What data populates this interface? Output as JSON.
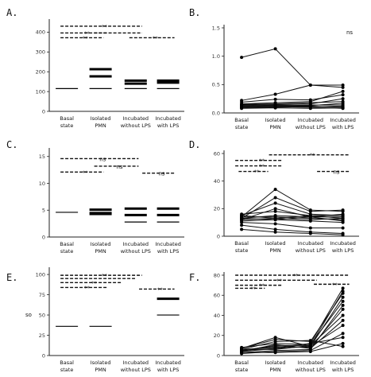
{
  "panels": [
    {
      "id": "A",
      "label": "A.",
      "type": "bar-range",
      "ylim": [
        0,
        450
      ],
      "yticks": [
        0,
        100,
        200,
        300,
        400
      ],
      "categories": [
        "Basal state",
        "Isolated PMN",
        "Incubated without LPS",
        "Incubated with LPS"
      ],
      "series": [
        {
          "values": [
            115,
            115,
            115,
            115
          ]
        },
        {
          "values": [
            null,
            177,
            140,
            145
          ]
        },
        {
          "values": [
            null,
            213,
            155,
            155
          ]
        }
      ],
      "sig_bars": [
        {
          "from": 0,
          "to": 2,
          "y": 430,
          "label": "**"
        },
        {
          "from": 0,
          "to": 1,
          "y": 396,
          "label": "**"
        },
        {
          "from": 1,
          "to": 2,
          "y": 396,
          "label": ""
        },
        {
          "from": 0,
          "to": 0.9,
          "y": 372,
          "label": "**"
        },
        {
          "from": 2,
          "to": 3,
          "y": 372,
          "label": "**"
        }
      ],
      "annotations": []
    },
    {
      "id": "B",
      "label": "B.",
      "type": "line",
      "ylim": [
        0,
        1.5
      ],
      "yticks": [
        0,
        0.5,
        1.0,
        1.5
      ],
      "ytick_labels": [
        "0.0",
        "0.5",
        "1.0",
        "1.5"
      ],
      "categories": [
        "Basal state",
        "Isolated PMN",
        "Incubated without LPS",
        "Incubated with LPS"
      ],
      "series": [
        {
          "values": [
            0.98,
            1.13,
            0.49,
            0.49
          ]
        },
        {
          "values": [
            0.22,
            0.33,
            0.49,
            0.45
          ]
        },
        {
          "values": [
            0.19,
            0.24,
            0.23,
            0.32
          ]
        },
        {
          "values": [
            0.16,
            0.18,
            0.2,
            0.38
          ]
        },
        {
          "values": [
            0.15,
            0.16,
            0.18,
            0.2
          ]
        },
        {
          "values": [
            0.14,
            0.15,
            0.16,
            0.25
          ]
        },
        {
          "values": [
            0.13,
            0.14,
            0.13,
            0.17
          ]
        },
        {
          "values": [
            0.12,
            0.13,
            0.14,
            0.14
          ]
        },
        {
          "values": [
            0.11,
            0.12,
            0.12,
            0.1
          ]
        },
        {
          "values": [
            0.1,
            0.11,
            0.1,
            0.08
          ]
        },
        {
          "values": [
            0.09,
            0.1,
            0.11,
            0.12
          ]
        },
        {
          "values": [
            0.08,
            0.09,
            0.08,
            0.09
          ]
        }
      ],
      "sig_bars": [],
      "annotations": [
        {
          "text": "ns"
        }
      ]
    },
    {
      "id": "C",
      "label": "C.",
      "type": "bar-range",
      "ylim": [
        0,
        16
      ],
      "yticks": [
        0,
        5,
        10,
        15
      ],
      "categories": [
        "Basal state",
        "Isolated PMN",
        "Incubated without LPS",
        "Incubated with LPS"
      ],
      "series": [
        {
          "values": [
            4.6,
            4.6,
            2.8,
            2.8
          ]
        },
        {
          "values": [
            null,
            4.3,
            4.1,
            4.1
          ]
        },
        {
          "values": [
            null,
            5.1,
            5.3,
            5.3
          ]
        }
      ],
      "sig_bars": [
        {
          "from": 0,
          "to": 1.9,
          "y": 14.6,
          "label": "ns"
        },
        {
          "from": 0,
          "to": 0.9,
          "y": 12.1,
          "label": "**"
        },
        {
          "from": 1,
          "to": 1.9,
          "y": 13.2,
          "label": "ns"
        },
        {
          "from": 2.4,
          "to": 3,
          "y": 11.9,
          "label": "ns"
        }
      ],
      "annotations": []
    },
    {
      "id": "D",
      "label": "D.",
      "type": "line",
      "ylim": [
        0,
        60
      ],
      "yticks": [
        0,
        20,
        40,
        60
      ],
      "categories": [
        "Basal state",
        "Isolated PMN",
        "Incubated without LPS",
        "Incubated with LPS"
      ],
      "series": [
        {
          "values": [
            14,
            34,
            19,
            18
          ]
        },
        {
          "values": [
            13,
            28,
            18,
            19
          ]
        },
        {
          "values": [
            15,
            24,
            16,
            15
          ]
        },
        {
          "values": [
            12,
            20,
            14,
            16
          ]
        },
        {
          "values": [
            16,
            18,
            15,
            13
          ]
        },
        {
          "values": [
            13,
            15,
            14,
            14
          ]
        },
        {
          "values": [
            14,
            14,
            13,
            12
          ]
        },
        {
          "values": [
            12,
            13,
            12,
            13
          ]
        },
        {
          "values": [
            11,
            12,
            14,
            11
          ]
        },
        {
          "values": [
            15,
            13,
            15,
            15
          ]
        },
        {
          "values": [
            10,
            9,
            6,
            6
          ]
        },
        {
          "values": [
            8,
            5,
            3,
            2
          ]
        },
        {
          "values": [
            5,
            3,
            2,
            1
          ]
        },
        {
          "values": [
            13,
            12,
            11,
            10
          ]
        }
      ],
      "sig_bars": [
        {
          "from": 1,
          "to": 3,
          "y": 59,
          "label": "**"
        },
        {
          "from": 0,
          "to": 1,
          "y": 55,
          "label": "**"
        },
        {
          "from": 0,
          "to": 1,
          "y": 51,
          "label": "**"
        },
        {
          "from": 0.1,
          "to": 0.6,
          "y": 47,
          "label": "**"
        },
        {
          "from": 2.4,
          "to": 3,
          "y": 47,
          "label": "ns"
        }
      ],
      "annotations": []
    },
    {
      "id": "E",
      "label": "E.",
      "type": "bar-range",
      "ylim": [
        0,
        105
      ],
      "yticks": [
        0,
        25,
        50,
        75,
        100
      ],
      "categories": [
        "Basal state",
        "Isolated PMN",
        "Incubated without LPS",
        "Incubated with LPS"
      ],
      "series": [
        {
          "values": [
            36,
            36,
            null,
            50
          ]
        },
        {
          "values": [
            null,
            null,
            null,
            70
          ]
        }
      ],
      "sig_bars": [
        {
          "from": 0,
          "to": 2,
          "y": 99,
          "label": "**"
        },
        {
          "from": 0,
          "to": 1.8,
          "y": 95,
          "label": ""
        },
        {
          "from": 0,
          "to": 1.4,
          "y": 90,
          "label": "**"
        },
        {
          "from": 0,
          "to": 1,
          "y": 84,
          "label": "**"
        },
        {
          "from": 2.3,
          "to": 3,
          "y": 82,
          "label": "**"
        }
      ],
      "annotations": [
        {
          "text": "so"
        }
      ]
    },
    {
      "id": "F",
      "label": "F.",
      "type": "line",
      "ylim": [
        0,
        80
      ],
      "yticks": [
        0,
        20,
        40,
        60,
        80
      ],
      "categories": [
        "Basal state",
        "Isolated PMN",
        "Incubated without LPS",
        "Incubated with LPS"
      ],
      "series": [
        {
          "values": [
            6,
            8,
            12,
            67
          ]
        },
        {
          "values": [
            5,
            10,
            10,
            64
          ]
        },
        {
          "values": [
            7,
            16,
            14,
            62
          ]
        },
        {
          "values": [
            4,
            7,
            9,
            58
          ]
        },
        {
          "values": [
            8,
            12,
            11,
            54
          ]
        },
        {
          "values": [
            3,
            5,
            6,
            50
          ]
        },
        {
          "values": [
            5,
            9,
            8,
            46
          ]
        },
        {
          "values": [
            6,
            6,
            10,
            40
          ]
        },
        {
          "values": [
            4,
            11,
            7,
            35
          ]
        },
        {
          "values": [
            7,
            18,
            9,
            30
          ]
        },
        {
          "values": [
            2,
            4,
            5,
            22
          ]
        },
        {
          "values": [
            5,
            7,
            12,
            18
          ]
        },
        {
          "values": [
            3,
            3,
            4,
            12
          ]
        },
        {
          "values": [
            6,
            14,
            15,
            9
          ]
        }
      ],
      "sig_bars": [
        {
          "from": 0,
          "to": 3,
          "y": 80,
          "label": "**"
        },
        {
          "from": 0,
          "to": 2,
          "y": 75,
          "label": "**"
        },
        {
          "from": 0,
          "to": 1,
          "y": 70,
          "label": "**"
        },
        {
          "from": 0,
          "to": 0.5,
          "y": 67,
          "label": "**"
        },
        {
          "from": 2.3,
          "to": 3,
          "y": 71,
          "label": "**"
        }
      ],
      "annotations": []
    }
  ]
}
